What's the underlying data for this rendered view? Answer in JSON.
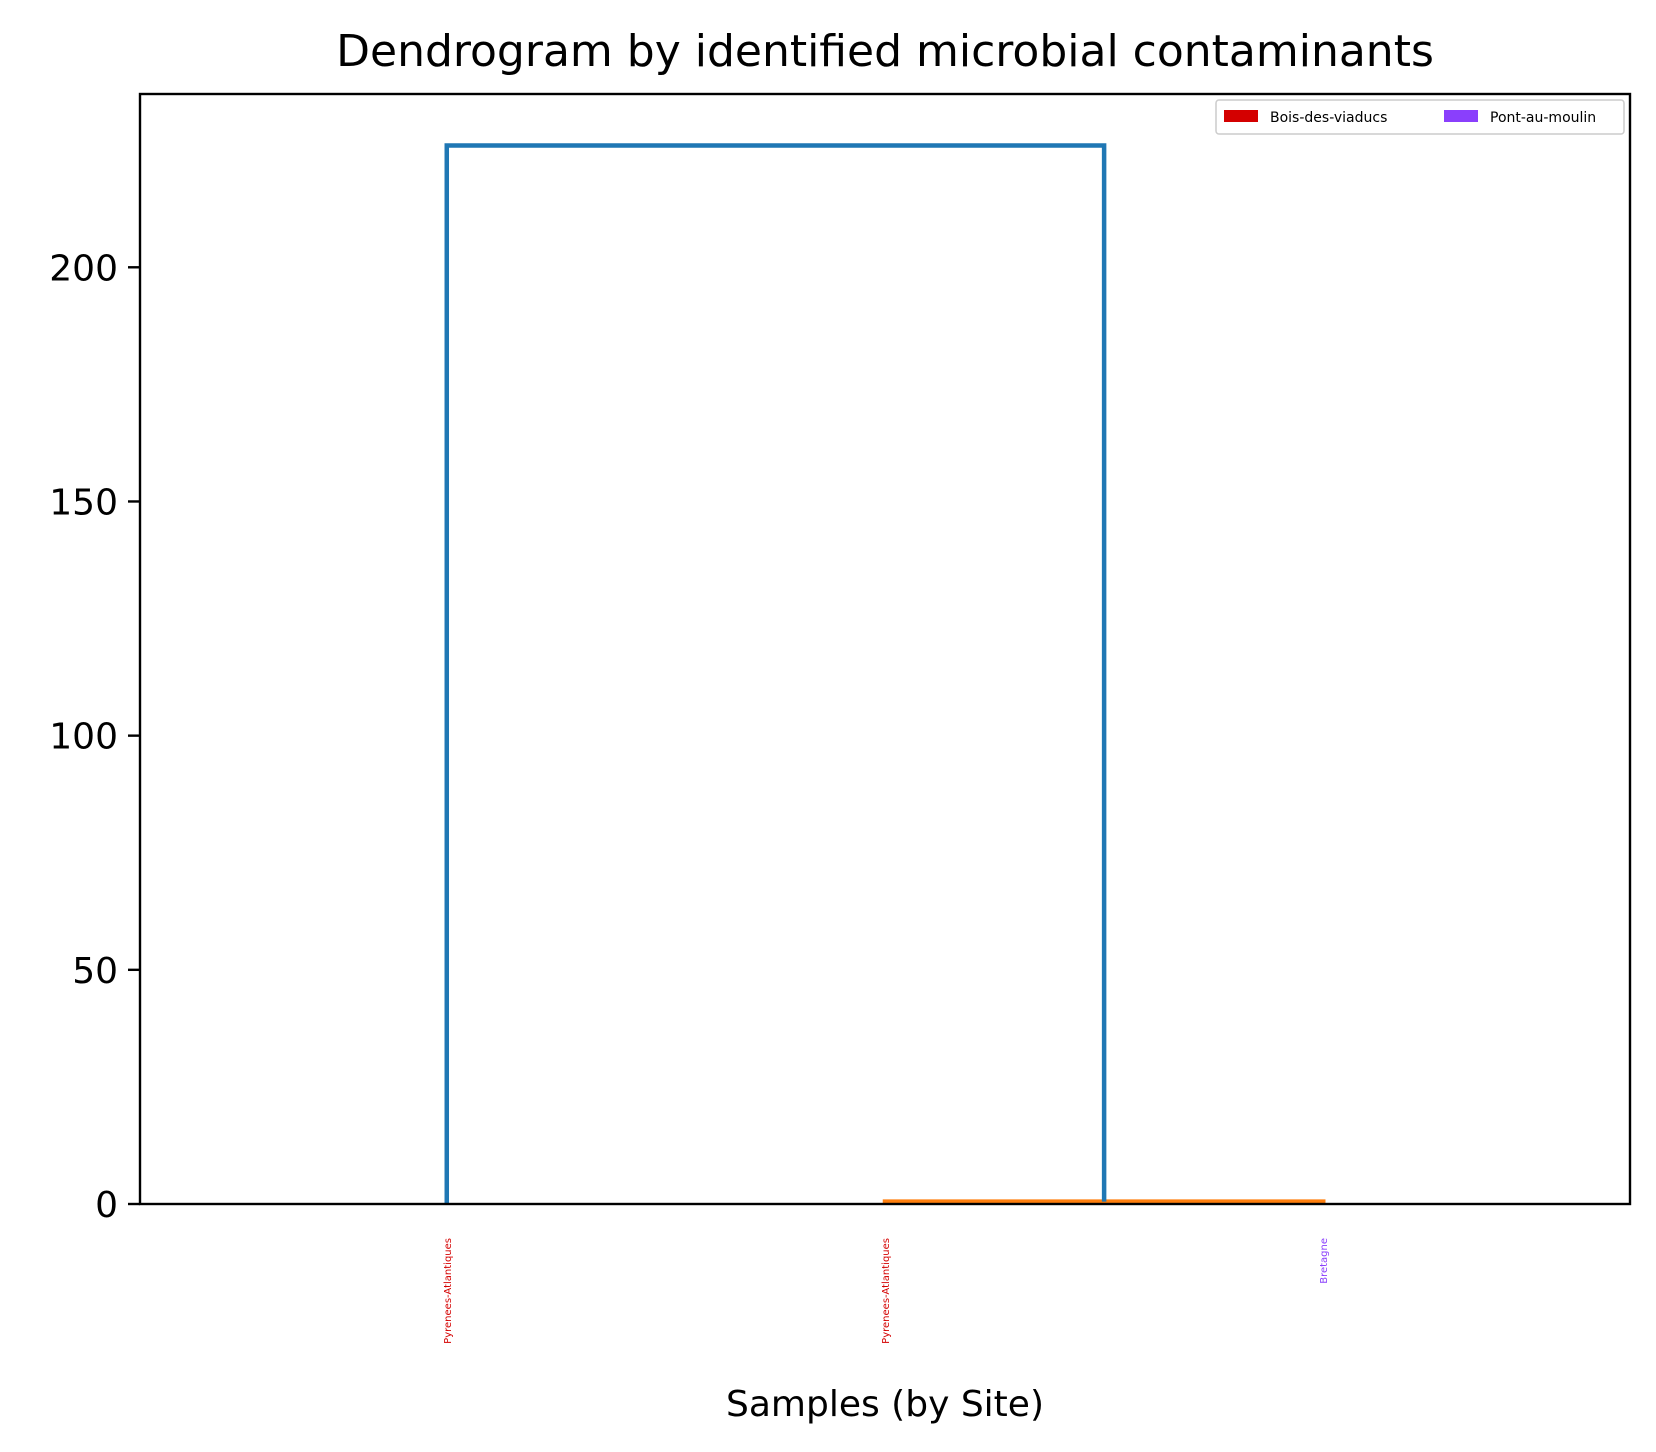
{
  "chart_data": {
    "type": "dendrogram",
    "title": "Dendrogram by identified microbial contaminants",
    "xlabel": "Samples (by Site)",
    "ylabel": "",
    "ylim": [
      0,
      237
    ],
    "yticks": [
      0,
      50,
      100,
      150,
      200
    ],
    "leaves": [
      {
        "label": "Pyrenees-Atlantiques",
        "group": "Bois-des-viaducs",
        "color": "#d40000"
      },
      {
        "label": "Pyrenees-Atlantiques",
        "group": "Bois-des-viaducs",
        "color": "#d40000"
      },
      {
        "label": "Bretagne",
        "group": "Pont-au-moulin",
        "color": "#8a3ffc"
      }
    ],
    "links": [
      {
        "left": 1,
        "right": 2,
        "height": 0.5,
        "color": "#ff7f0e"
      },
      {
        "left": 0,
        "right": "link-0",
        "height": 226,
        "color": "#1f77b4"
      }
    ],
    "legend": {
      "placement": "top-right",
      "entries": [
        {
          "label": "Bois-des-viaducs",
          "color": "#d40000"
        },
        {
          "label": "Pont-au-moulin",
          "color": "#8a3ffc"
        }
      ]
    },
    "grid": false
  }
}
